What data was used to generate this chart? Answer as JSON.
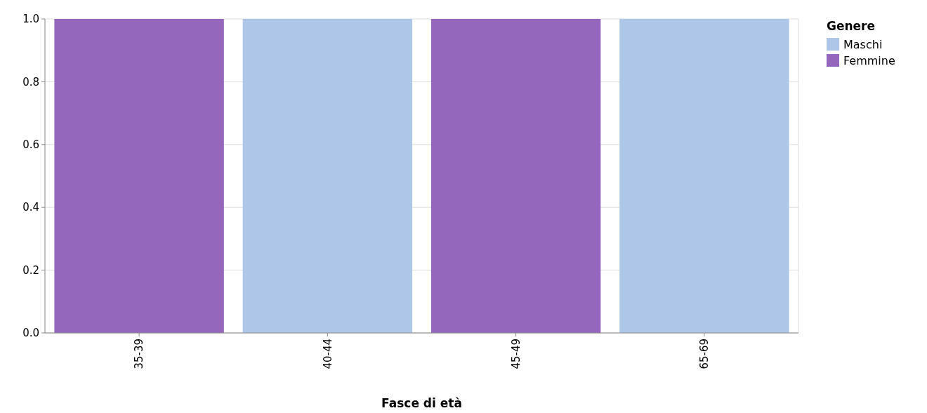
{
  "chart_data": {
    "type": "bar",
    "stacked": true,
    "xlabel": "Fasce di età",
    "legend_title": "Genere",
    "categories": [
      "35-39",
      "40-44",
      "45-49",
      "65-69"
    ],
    "series": [
      {
        "name": "Maschi",
        "color": "#aec7e8",
        "values": [
          0,
          1,
          0,
          1
        ]
      },
      {
        "name": "Femmine",
        "color": "#9467bd",
        "values": [
          1,
          0,
          1,
          0
        ]
      }
    ],
    "ylim": [
      0,
      1
    ],
    "yticks": [
      {
        "value": 0,
        "label": "0.0"
      },
      0.2,
      0.4,
      0.6,
      0.8,
      {
        "value": 1,
        "label": "1.0"
      }
    ],
    "grid": "y",
    "legend": "top right"
  }
}
